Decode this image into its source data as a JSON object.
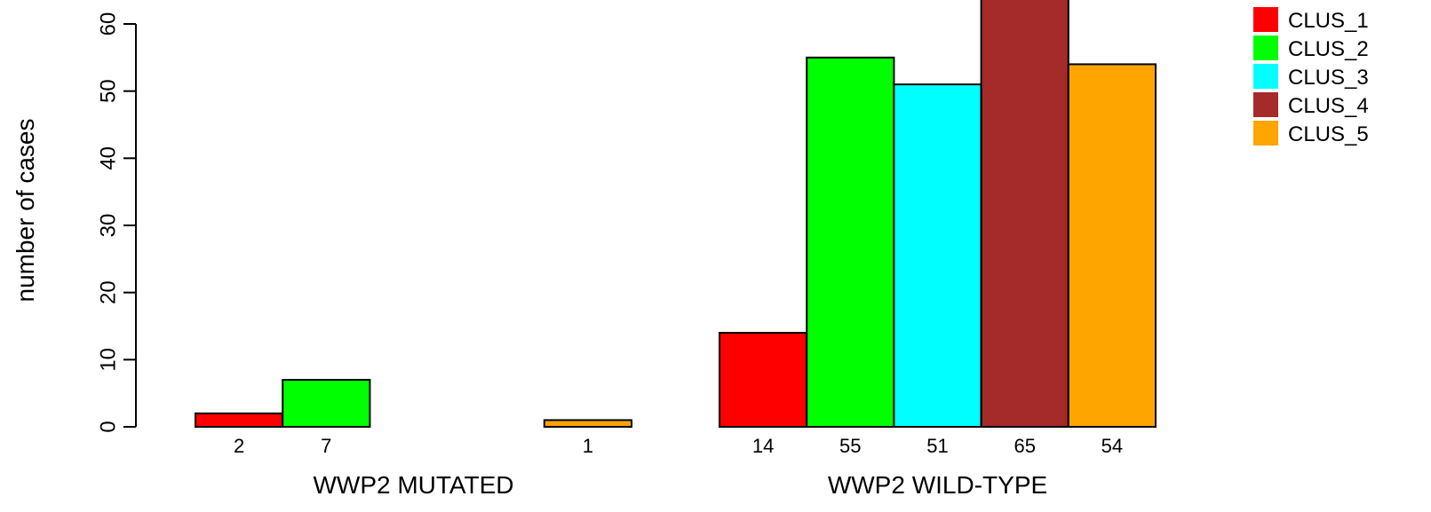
{
  "chart_data": {
    "type": "bar",
    "groups": [
      "WWP2 MUTATED",
      "WWP2 WILD-TYPE"
    ],
    "series": [
      {
        "name": "CLUS_1",
        "color": "#ff0000",
        "values": [
          2,
          14
        ]
      },
      {
        "name": "CLUS_2",
        "color": "#00ff00",
        "values": [
          7,
          55
        ]
      },
      {
        "name": "CLUS_3",
        "color": "#00ffff",
        "values": [
          0,
          51
        ]
      },
      {
        "name": "CLUS_4",
        "color": "#a52a2a",
        "values": [
          0,
          65
        ]
      },
      {
        "name": "CLUS_5",
        "color": "#ffa500",
        "values": [
          1,
          54
        ]
      }
    ],
    "value_labels": [
      [
        "2",
        "7",
        "",
        "",
        "1"
      ],
      [
        "14",
        "55",
        "51",
        "65",
        "54"
      ]
    ],
    "ylabel": "number of cases",
    "yticks": [
      0,
      10,
      20,
      30,
      40,
      50,
      60
    ],
    "ylim": [
      0,
      60
    ],
    "legend_position": "top-right",
    "grid": false
  }
}
